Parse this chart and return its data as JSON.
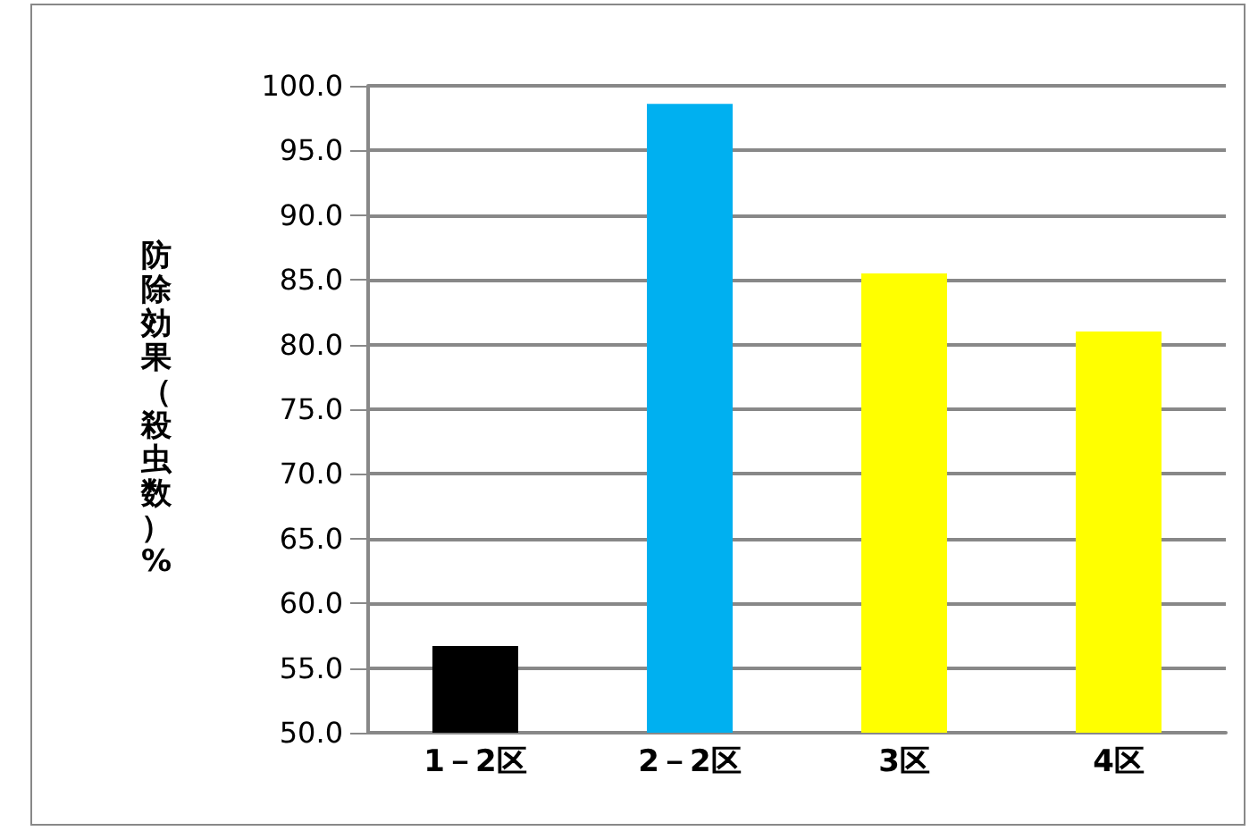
{
  "chart_data": {
    "type": "bar",
    "ylabel": "防除効果（殺虫数）%",
    "categories": [
      "1－2区",
      "2－2区",
      "3区",
      "4区"
    ],
    "values": [
      56.7,
      98.6,
      85.5,
      81.0
    ],
    "colors": [
      "#000000",
      "#00b0f0",
      "#ffff00",
      "#ffff00"
    ],
    "ylim": [
      50,
      100
    ],
    "yticks": [
      {
        "value": 50,
        "label": "50.0"
      },
      {
        "value": 55,
        "label": "55.0"
      },
      {
        "value": 60,
        "label": "60.0"
      },
      {
        "value": 65,
        "label": "65.0"
      },
      {
        "value": 70,
        "label": "70.0"
      },
      {
        "value": 75,
        "label": "75.0"
      },
      {
        "value": 80,
        "label": "80.0"
      },
      {
        "value": 85,
        "label": "85.0"
      },
      {
        "value": 90,
        "label": "90.0"
      },
      {
        "value": 95,
        "label": "95.0"
      },
      {
        "value": 100,
        "label": "100.0"
      }
    ],
    "grid": "y"
  }
}
